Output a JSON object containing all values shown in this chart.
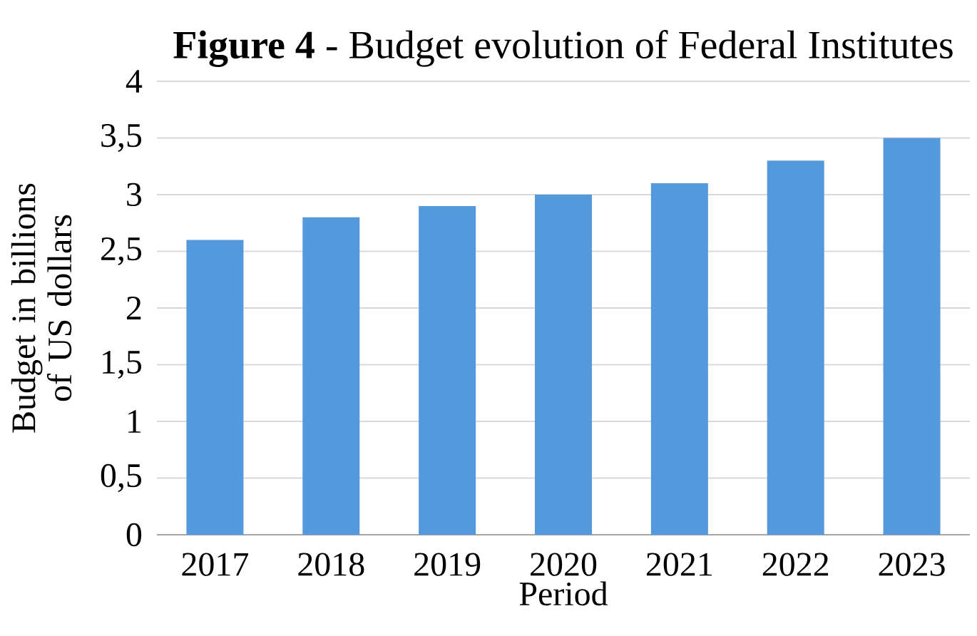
{
  "chart_data": {
    "type": "bar",
    "title": "**Figure 4** - Budget evolution of Federal Institutes",
    "xlabel": "Period",
    "ylabel": "Budget in billions of US dollars",
    "categories": [
      "2017",
      "2018",
      "2019",
      "2020",
      "2021",
      "2022",
      "2023"
    ],
    "values": [
      2.6,
      2.8,
      2.9,
      3.0,
      3.1,
      3.3,
      3.5
    ],
    "color": "#5599dd",
    "ylim": [
      0,
      4
    ],
    "yticks": [
      0,
      {
        "value": 0.5,
        "label": "0,5"
      },
      1,
      {
        "value": 1.5,
        "label": "1,5"
      },
      2,
      {
        "value": 2.5,
        "label": "2,5"
      },
      3,
      {
        "value": 3.5,
        "label": "3,5"
      },
      4
    ],
    "grid": "y"
  }
}
